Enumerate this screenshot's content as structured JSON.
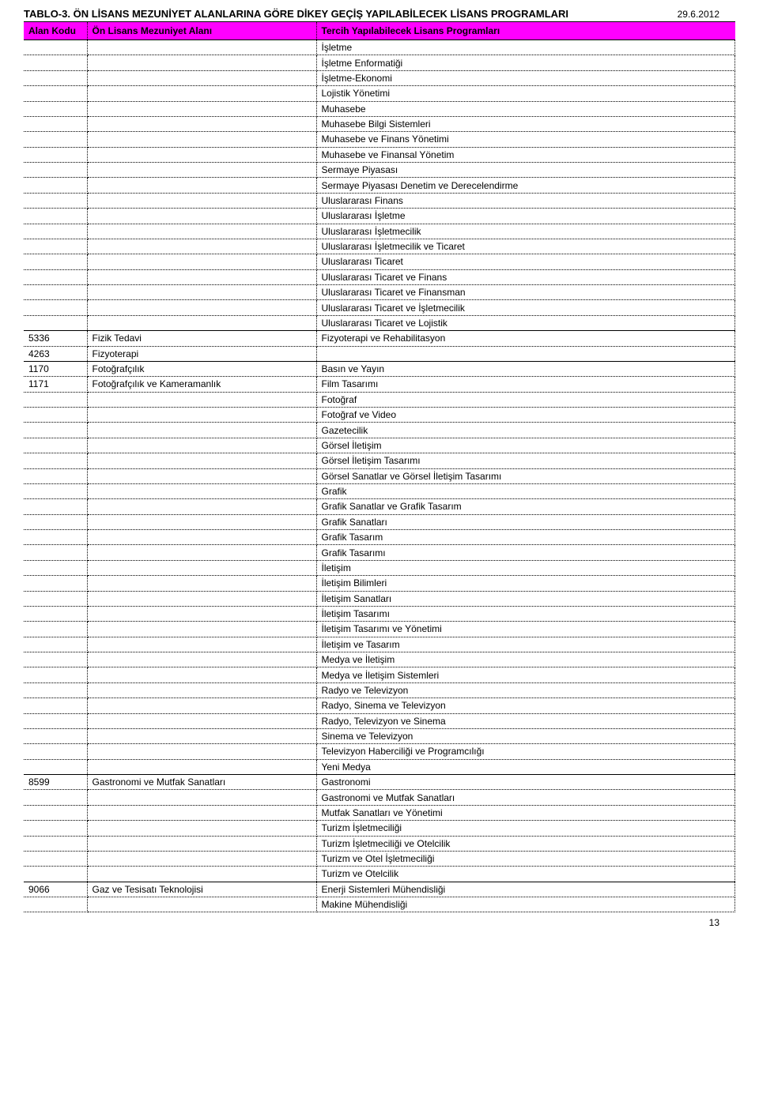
{
  "title": "TABLO-3. ÖN LİSANS MEZUNİYET ALANLARINA GÖRE DİKEY GEÇİŞ YAPILABİLECEK LİSANS PROGRAMLARI",
  "date": "29.6.2012",
  "page_number": "13",
  "header": {
    "bg_color": "#ff00ff",
    "text_color": "#000000",
    "col_code": "Alan Kodu",
    "col_area": "Ön Lisans Mezuniyet Alanı",
    "col_prog": "Tercih Yapılabilecek Lisans Programları"
  },
  "groups": [
    {
      "code": "",
      "area": "",
      "no_top_border": true,
      "programs": [
        "İşletme",
        "İşletme Enformatiği",
        "İşletme-Ekonomi",
        "Lojistik Yönetimi",
        "Muhasebe",
        "Muhasebe Bilgi Sistemleri",
        "Muhasebe ve Finans Yönetimi",
        "Muhasebe ve Finansal Yönetim",
        "Sermaye Piyasası",
        "Sermaye Piyasası Denetim ve Derecelendirme",
        "Uluslararası Finans",
        "Uluslararası İşletme",
        "Uluslararası İşletmecilik",
        "Uluslararası İşletmecilik ve Ticaret",
        "Uluslararası Ticaret",
        "Uluslararası Ticaret ve Finans",
        "Uluslararası Ticaret ve Finansman",
        "Uluslararası Ticaret ve İşletmecilik",
        "Uluslararası Ticaret ve Lojistik"
      ]
    },
    {
      "code": "5336",
      "area": "Fizik Tedavi",
      "programs": [
        "Fizyoterapi ve Rehabilitasyon"
      ],
      "extra_rows": [
        {
          "code": "4263",
          "area": "Fizyoterapi"
        }
      ]
    },
    {
      "code": "1170",
      "area": "Fotoğrafçılık",
      "programs": [
        "Basın ve Yayın",
        "Film Tasarımı",
        "Fotoğraf",
        "Fotoğraf ve Video",
        "Gazetecilik",
        "Görsel İletişim",
        "Görsel İletişim Tasarımı",
        "Görsel Sanatlar ve Görsel İletişim Tasarımı",
        "Grafik",
        "Grafik Sanatlar ve Grafik Tasarım",
        "Grafik Sanatları",
        "Grafik Tasarım",
        "Grafik Tasarımı",
        "İletişim",
        "İletişim Bilimleri",
        "İletişim Sanatları",
        "İletişim Tasarımı",
        "İletişim Tasarımı ve Yönetimi",
        "İletişim ve Tasarım",
        "Medya ve İletişim",
        "Medya ve İletişim Sistemleri",
        "Radyo ve Televizyon",
        "Radyo, Sinema ve Televizyon",
        "Radyo, Televizyon ve Sinema",
        "Sinema ve Televizyon",
        "Televizyon Haberciliği ve Programcılığı",
        "Yeni Medya"
      ],
      "extra_rows": [
        {
          "code": "1171",
          "area": "Fotoğrafçılık ve Kameramanlık",
          "at_index": 1
        }
      ]
    },
    {
      "code": "8599",
      "area": "Gastronomi ve Mutfak Sanatları",
      "programs": [
        "Gastronomi",
        "Gastronomi ve Mutfak Sanatları",
        "Mutfak Sanatları ve Yönetimi",
        "Turizm İşletmeciliği",
        "Turizm İşletmeciliği ve Otelcilik",
        "Turizm ve Otel İşletmeciliği",
        "Turizm ve Otelcilik"
      ]
    },
    {
      "code": "9066",
      "area": "Gaz ve Tesisatı Teknolojisi",
      "programs": [
        "Enerji Sistemleri Mühendisliği",
        "Makine Mühendisliği"
      ]
    }
  ]
}
